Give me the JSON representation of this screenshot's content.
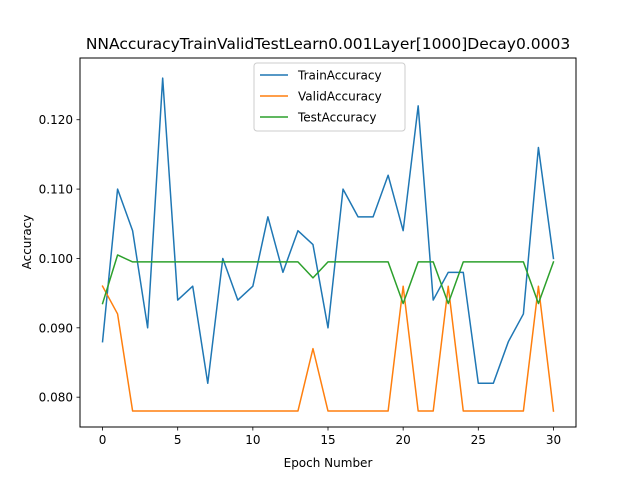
{
  "chart_data": {
    "type": "line",
    "title": "NNAccuracyTrainValidTestLearn0.001Layer[1000]Decay0.0003",
    "xlabel": "Epoch Number",
    "ylabel": "Accuracy",
    "xlim": [
      -1.5,
      31.5
    ],
    "ylim": [
      0.0757,
      0.1289
    ],
    "xticks": [
      0,
      5,
      10,
      15,
      20,
      25,
      30
    ],
    "yticks": [
      0.08,
      0.09,
      0.1,
      0.11,
      0.12
    ],
    "xtick_labels": [
      "0",
      "5",
      "10",
      "15",
      "20",
      "25",
      "30"
    ],
    "ytick_labels": [
      "0.080",
      "0.090",
      "0.100",
      "0.110",
      "0.120"
    ],
    "grid": false,
    "legend_position": "top-center",
    "x": [
      0,
      1,
      2,
      3,
      4,
      5,
      6,
      7,
      8,
      9,
      10,
      11,
      12,
      13,
      14,
      15,
      16,
      17,
      18,
      19,
      20,
      21,
      22,
      23,
      24,
      25,
      26,
      27,
      28,
      29,
      30
    ],
    "series": [
      {
        "name": "TrainAccuracy",
        "color": "#1f77b4",
        "values": [
          0.088,
          0.11,
          0.104,
          0.09,
          0.126,
          0.094,
          0.096,
          0.082,
          0.1,
          0.094,
          0.096,
          0.106,
          0.098,
          0.104,
          0.102,
          0.09,
          0.11,
          0.106,
          0.106,
          0.112,
          0.104,
          0.122,
          0.094,
          0.098,
          0.098,
          0.082,
          0.082,
          0.088,
          0.092,
          0.116,
          0.1
        ]
      },
      {
        "name": "ValidAccuracy",
        "color": "#ff7f0e",
        "values": [
          0.096,
          0.092,
          0.078,
          0.078,
          0.078,
          0.078,
          0.078,
          0.078,
          0.078,
          0.078,
          0.078,
          0.078,
          0.078,
          0.078,
          0.087,
          0.078,
          0.078,
          0.078,
          0.078,
          0.078,
          0.096,
          0.078,
          0.078,
          0.096,
          0.078,
          0.078,
          0.078,
          0.078,
          0.078,
          0.096,
          0.078
        ]
      },
      {
        "name": "TestAccuracy",
        "color": "#2ca02c",
        "values": [
          0.0935,
          0.1005,
          0.0995,
          0.0995,
          0.0995,
          0.0995,
          0.0995,
          0.0995,
          0.0995,
          0.0995,
          0.0995,
          0.0995,
          0.0995,
          0.0995,
          0.0972,
          0.0995,
          0.0995,
          0.0995,
          0.0995,
          0.0995,
          0.0935,
          0.0995,
          0.0995,
          0.0935,
          0.0995,
          0.0995,
          0.0995,
          0.0995,
          0.0995,
          0.0935,
          0.0995
        ]
      }
    ]
  }
}
